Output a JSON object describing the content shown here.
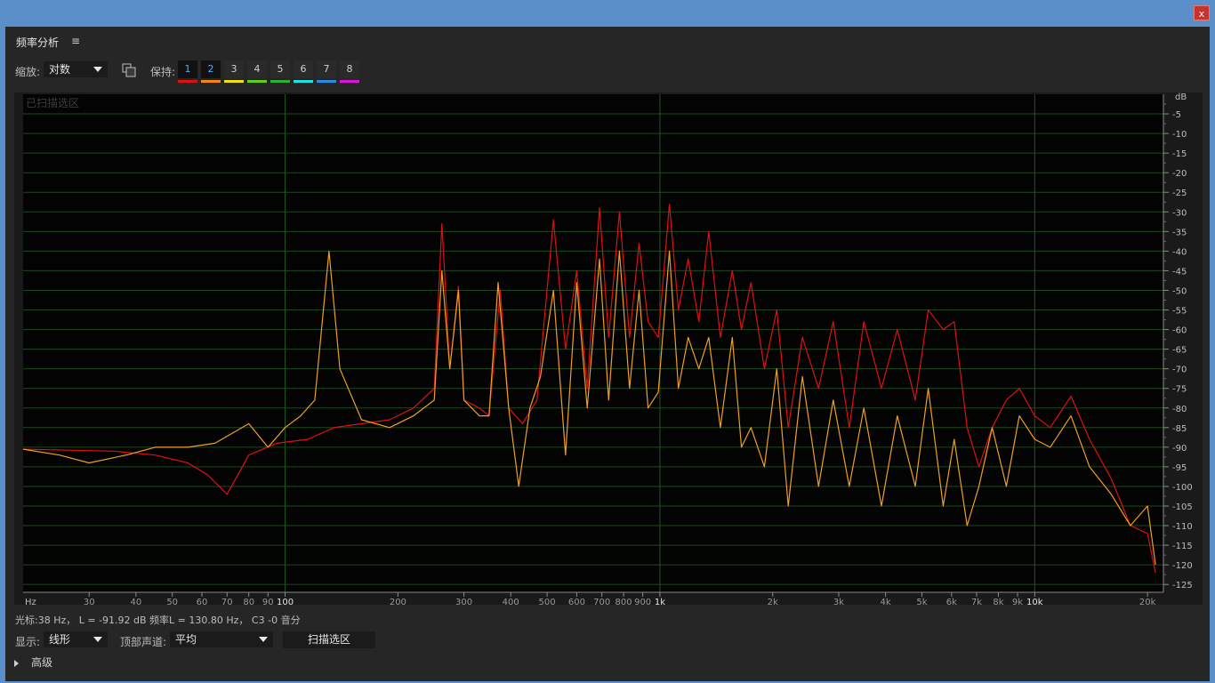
{
  "window": {
    "close_label": "x"
  },
  "panel": {
    "title": "频率分析",
    "menu_icon": "≡"
  },
  "toolbar": {
    "zoom_label": "缩放:",
    "zoom_value": "对数",
    "hold_label": "保持:",
    "hold_buttons": [
      {
        "label": "1",
        "color": "#e01010"
      },
      {
        "label": "2",
        "color": "#f08a10"
      },
      {
        "label": "3",
        "color": "#f0e010"
      },
      {
        "label": "4",
        "color": "#60d010"
      },
      {
        "label": "5",
        "color": "#30b030"
      },
      {
        "label": "6",
        "color": "#20e0e0"
      },
      {
        "label": "7",
        "color": "#2a8ae8"
      },
      {
        "label": "8",
        "color": "#e010e0"
      }
    ]
  },
  "graph": {
    "overlay_label": "已扫描选区",
    "x_unit": "Hz",
    "y_unit": "dB"
  },
  "chart_data": {
    "type": "line",
    "title": "",
    "xlabel": "Hz",
    "ylabel": "dB",
    "x_scale": "log",
    "xlim": [
      20,
      22050
    ],
    "ylim": [
      -127,
      0
    ],
    "x_ticks": [
      {
        "v": 30,
        "label": "30"
      },
      {
        "v": 40,
        "label": "40"
      },
      {
        "v": 50,
        "label": "50"
      },
      {
        "v": 60,
        "label": "60"
      },
      {
        "v": 70,
        "label": "70"
      },
      {
        "v": 80,
        "label": "80"
      },
      {
        "v": 90,
        "label": "90"
      },
      {
        "v": 100,
        "label": "100"
      },
      {
        "v": 200,
        "label": "200"
      },
      {
        "v": 300,
        "label": "300"
      },
      {
        "v": 400,
        "label": "400"
      },
      {
        "v": 500,
        "label": "500"
      },
      {
        "v": 600,
        "label": "600"
      },
      {
        "v": 700,
        "label": "700"
      },
      {
        "v": 800,
        "label": "800"
      },
      {
        "v": 900,
        "label": "900"
      },
      {
        "v": 1000,
        "label": "1k"
      },
      {
        "v": 2000,
        "label": "2k"
      },
      {
        "v": 3000,
        "label": "3k"
      },
      {
        "v": 4000,
        "label": "4k"
      },
      {
        "v": 5000,
        "label": "5k"
      },
      {
        "v": 6000,
        "label": "6k"
      },
      {
        "v": 7000,
        "label": "7k"
      },
      {
        "v": 8000,
        "label": "8k"
      },
      {
        "v": 9000,
        "label": "9k"
      },
      {
        "v": 10000,
        "label": "10k"
      },
      {
        "v": 20000,
        "label": "20k"
      }
    ],
    "y_ticks": [
      -5,
      -10,
      -15,
      -20,
      -25,
      -30,
      -35,
      -40,
      -45,
      -50,
      -55,
      -60,
      -65,
      -70,
      -75,
      -80,
      -85,
      -90,
      -95,
      -100,
      -105,
      -110,
      -115,
      -120,
      -125
    ],
    "grid": true,
    "series": [
      {
        "color": "#e01010",
        "points": [
          [
            20,
            -90.5
          ],
          [
            35,
            -91
          ],
          [
            45,
            -92
          ],
          [
            55,
            -94
          ],
          [
            62,
            -97
          ],
          [
            70,
            -102
          ],
          [
            80,
            -92
          ],
          [
            95,
            -89
          ],
          [
            115,
            -88
          ],
          [
            135,
            -85
          ],
          [
            160,
            -84
          ],
          [
            190,
            -83
          ],
          [
            220,
            -80
          ],
          [
            250,
            -75
          ],
          [
            262,
            -33
          ],
          [
            275,
            -70
          ],
          [
            290,
            -49
          ],
          [
            300,
            -78
          ],
          [
            330,
            -80
          ],
          [
            350,
            -82
          ],
          [
            375,
            -50
          ],
          [
            395,
            -80
          ],
          [
            430,
            -84
          ],
          [
            470,
            -78
          ],
          [
            520,
            -32
          ],
          [
            560,
            -65
          ],
          [
            600,
            -45
          ],
          [
            640,
            -75
          ],
          [
            690,
            -29
          ],
          [
            730,
            -62
          ],
          [
            780,
            -30
          ],
          [
            830,
            -62
          ],
          [
            880,
            -38
          ],
          [
            930,
            -58
          ],
          [
            990,
            -62
          ],
          [
            1060,
            -28
          ],
          [
            1120,
            -55
          ],
          [
            1190,
            -42
          ],
          [
            1270,
            -58
          ],
          [
            1350,
            -35
          ],
          [
            1450,
            -62
          ],
          [
            1560,
            -45
          ],
          [
            1650,
            -60
          ],
          [
            1750,
            -48
          ],
          [
            1900,
            -70
          ],
          [
            2050,
            -55
          ],
          [
            2200,
            -85
          ],
          [
            2400,
            -62
          ],
          [
            2650,
            -75
          ],
          [
            2900,
            -58
          ],
          [
            3200,
            -85
          ],
          [
            3500,
            -58
          ],
          [
            3900,
            -75
          ],
          [
            4300,
            -60
          ],
          [
            4800,
            -78
          ],
          [
            5200,
            -55
          ],
          [
            5700,
            -60
          ],
          [
            6100,
            -58
          ],
          [
            6600,
            -85
          ],
          [
            7100,
            -95
          ],
          [
            7700,
            -85
          ],
          [
            8400,
            -78
          ],
          [
            9100,
            -75
          ],
          [
            10000,
            -82
          ],
          [
            11000,
            -85
          ],
          [
            12500,
            -77
          ],
          [
            14000,
            -88
          ],
          [
            16000,
            -98
          ],
          [
            18000,
            -110
          ],
          [
            20000,
            -112
          ],
          [
            21000,
            -122
          ]
        ]
      },
      {
        "color": "#f0a020",
        "points": [
          [
            20,
            -90.5
          ],
          [
            25,
            -92
          ],
          [
            30,
            -94
          ],
          [
            38,
            -91.92
          ],
          [
            45,
            -90
          ],
          [
            55,
            -90
          ],
          [
            65,
            -89
          ],
          [
            80,
            -84
          ],
          [
            90,
            -90
          ],
          [
            100,
            -85
          ],
          [
            110,
            -82
          ],
          [
            120,
            -78
          ],
          [
            131,
            -40
          ],
          [
            140,
            -70
          ],
          [
            160,
            -83
          ],
          [
            190,
            -85
          ],
          [
            220,
            -82
          ],
          [
            250,
            -78
          ],
          [
            262,
            -45
          ],
          [
            275,
            -70
          ],
          [
            290,
            -50
          ],
          [
            300,
            -78
          ],
          [
            330,
            -82
          ],
          [
            350,
            -82
          ],
          [
            370,
            -48
          ],
          [
            395,
            -80
          ],
          [
            420,
            -100
          ],
          [
            450,
            -80
          ],
          [
            480,
            -72
          ],
          [
            520,
            -50
          ],
          [
            560,
            -92
          ],
          [
            600,
            -48
          ],
          [
            640,
            -80
          ],
          [
            690,
            -42
          ],
          [
            730,
            -78
          ],
          [
            780,
            -40
          ],
          [
            830,
            -75
          ],
          [
            880,
            -50
          ],
          [
            930,
            -80
          ],
          [
            990,
            -76
          ],
          [
            1060,
            -40
          ],
          [
            1120,
            -75
          ],
          [
            1190,
            -62
          ],
          [
            1270,
            -70
          ],
          [
            1350,
            -62
          ],
          [
            1450,
            -85
          ],
          [
            1560,
            -62
          ],
          [
            1650,
            -90
          ],
          [
            1750,
            -85
          ],
          [
            1900,
            -95
          ],
          [
            2050,
            -70
          ],
          [
            2200,
            -105
          ],
          [
            2400,
            -72
          ],
          [
            2650,
            -100
          ],
          [
            2900,
            -78
          ],
          [
            3200,
            -100
          ],
          [
            3500,
            -80
          ],
          [
            3900,
            -105
          ],
          [
            4300,
            -82
          ],
          [
            4800,
            -100
          ],
          [
            5200,
            -75
          ],
          [
            5700,
            -105
          ],
          [
            6100,
            -88
          ],
          [
            6600,
            -110
          ],
          [
            7100,
            -100
          ],
          [
            7700,
            -85
          ],
          [
            8400,
            -100
          ],
          [
            9100,
            -82
          ],
          [
            10000,
            -88
          ],
          [
            11000,
            -90
          ],
          [
            12500,
            -82
          ],
          [
            14000,
            -95
          ],
          [
            16000,
            -102
          ],
          [
            18000,
            -110
          ],
          [
            20000,
            -105
          ],
          [
            21000,
            -120
          ]
        ]
      }
    ]
  },
  "status": {
    "text": "光标:38 Hz， L = -91.92 dB   频率L = 130.80 Hz， C3 -0 音分"
  },
  "bottom": {
    "display_label": "显示:",
    "display_value": "线形",
    "channel_label": "顶部声道:",
    "channel_value": "平均",
    "scan_button": "扫描选区",
    "advanced": "高级"
  }
}
